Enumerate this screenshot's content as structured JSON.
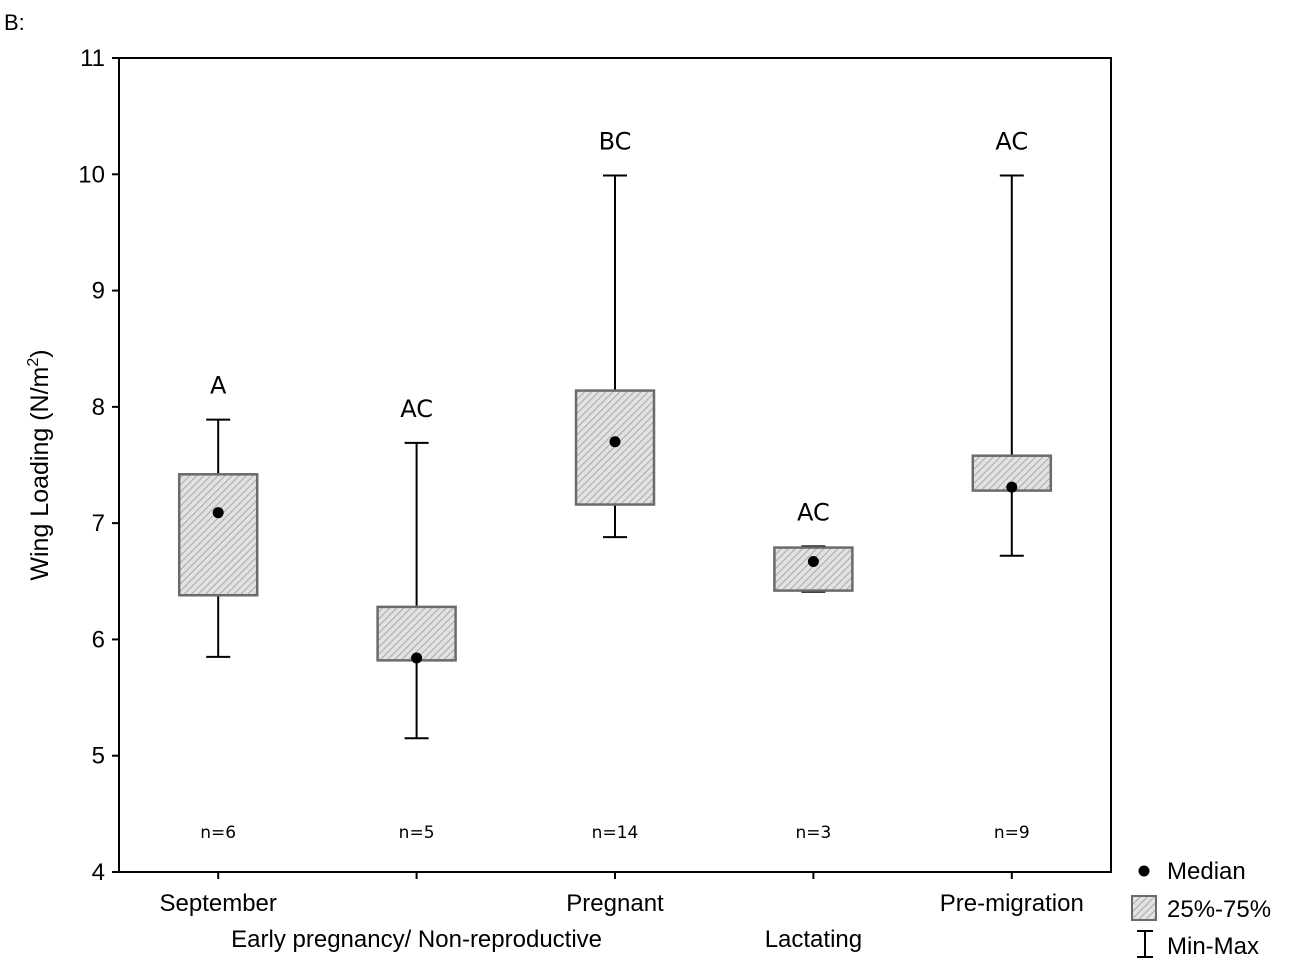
{
  "panel_label": "B:",
  "chart_data": {
    "type": "box",
    "ylabel": "Wing Loading (N/m",
    "ylabel_sup": "2",
    "ylabel_close": ")",
    "ylim": [
      4,
      11
    ],
    "yticks": [
      "4",
      "5",
      "6",
      "7",
      "8",
      "9",
      "10",
      "11"
    ],
    "grid": false,
    "series": [
      {
        "category": "September",
        "label_row": 1,
        "min": 5.85,
        "q1": 6.38,
        "median": 7.09,
        "q3": 7.42,
        "max": 7.89,
        "sig": "A",
        "n": "n=6"
      },
      {
        "category": "Early pregnancy/ Non-reproductive",
        "label_row": 2,
        "min": 5.15,
        "q1": 5.82,
        "median": 5.84,
        "q3": 6.28,
        "max": 7.69,
        "sig": "AC",
        "n": "n=5"
      },
      {
        "category": "Pregnant",
        "label_row": 1,
        "min": 6.88,
        "q1": 7.16,
        "median": 7.7,
        "q3": 8.14,
        "max": 9.99,
        "sig": "BC",
        "n": "n=14"
      },
      {
        "category": "Lactating",
        "label_row": 2,
        "min": 6.41,
        "q1": 6.42,
        "median": 6.67,
        "q3": 6.79,
        "max": 6.8,
        "sig": "AC",
        "n": "n=3"
      },
      {
        "category": "Pre-migration",
        "label_row": 1,
        "min": 6.72,
        "q1": 7.28,
        "median": 7.31,
        "q3": 7.58,
        "max": 9.99,
        "sig": "AC",
        "n": "n=9"
      }
    ],
    "legend": {
      "position": "bottom-right",
      "items": [
        {
          "symbol": "dot",
          "label": "Median"
        },
        {
          "symbol": "box",
          "label": "25%-75%"
        },
        {
          "symbol": "whisker",
          "label": "Min-Max"
        }
      ]
    },
    "colors": {
      "box_stroke": "#6b6b6b",
      "box_fill": "#dcdcdc",
      "hatch": "#9a9a9a",
      "axis": "#000000"
    }
  }
}
